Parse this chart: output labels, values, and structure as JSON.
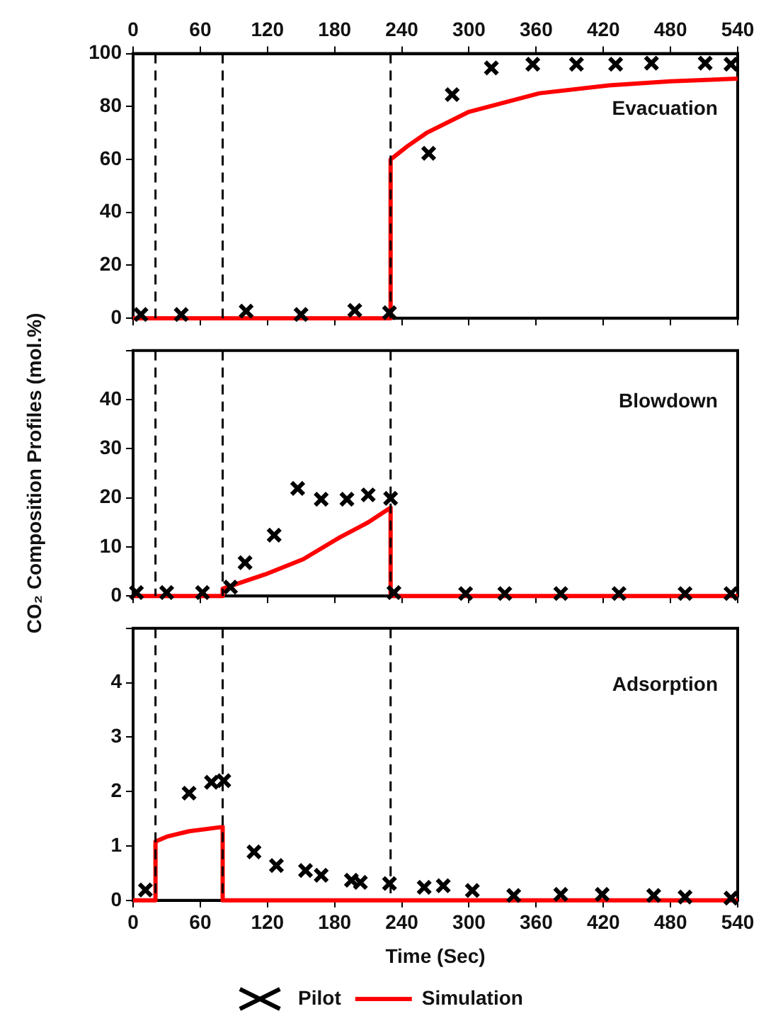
{
  "chart_data": [
    {
      "type": "line",
      "xlim": [
        0,
        540
      ],
      "xticks": [
        0,
        60,
        120,
        180,
        240,
        300,
        360,
        420,
        480,
        540
      ],
      "x2lim": [
        0,
        540
      ],
      "x2ticks": [
        0,
        60,
        120,
        180,
        240,
        300,
        360,
        420,
        480,
        540
      ],
      "tick_labels": "y",
      "ylim": [
        0,
        100
      ],
      "yticks": [
        0,
        20,
        40,
        60,
        80,
        100
      ],
      "grid": false,
      "legend": false,
      "annotations": [
        "Evacuation"
      ],
      "ref_lines": [
        {
          "axis": "x",
          "value": 20,
          "line_style": "dashed",
          "color": "#000000"
        },
        {
          "axis": "x",
          "value": 80,
          "line_style": "dashed",
          "color": "#000000"
        },
        {
          "axis": "x",
          "value": 230,
          "line_style": "dashed",
          "color": "#000000"
        }
      ],
      "series": [
        {
          "color": "#ff0000",
          "marker": "none",
          "x": [
            0,
            230,
            230,
            245,
            262,
            300,
            363,
            425,
            480,
            540
          ],
          "values": [
            0,
            0,
            60,
            65,
            70,
            78,
            85,
            88,
            89.5,
            90.5
          ]
        },
        {
          "type": "scatter",
          "color": "#000000",
          "marker": "cross",
          "x": [
            7,
            43,
            101,
            150,
            198,
            229,
            264,
            285,
            320,
            357,
            396,
            431,
            463,
            511,
            534
          ],
          "values": [
            1.4,
            1.4,
            2.7,
            1.4,
            3,
            2.1,
            62.3,
            84.5,
            94.6,
            96,
            96,
            96,
            96.4,
            96.4,
            96
          ]
        }
      ]
    },
    {
      "type": "line",
      "xlim": [
        0,
        540
      ],
      "xticks": [
        0,
        60,
        120,
        180,
        240,
        300,
        360,
        420,
        480,
        540
      ],
      "ylim": [
        0,
        50
      ],
      "yticks": [
        0,
        10,
        20,
        30,
        40,
        {
          "value": 50,
          "label": null
        }
      ],
      "tick_labels": "y",
      "grid": false,
      "legend": false,
      "ylabel": "CO₂ Composition Profiles (mol.%)",
      "annotations": [
        "Blowdown"
      ],
      "ref_lines": [
        {
          "axis": "x",
          "value": 20,
          "line_style": "dashed",
          "color": "#000000"
        },
        {
          "axis": "x",
          "value": 80,
          "line_style": "dashed",
          "color": "#000000"
        },
        {
          "axis": "x",
          "value": 230,
          "line_style": "dashed",
          "color": "#000000"
        }
      ],
      "series": [
        {
          "color": "#ff0000",
          "marker": "none",
          "x": [
            0,
            80,
            80,
            118,
            152,
            185,
            210,
            230,
            230,
            540
          ],
          "values": [
            0,
            0,
            1.5,
            4.4,
            7.5,
            12,
            15,
            18,
            0,
            0
          ]
        },
        {
          "type": "scatter",
          "color": "#000000",
          "marker": "cross",
          "x": [
            3,
            30,
            62,
            87,
            100,
            126,
            147,
            168,
            191,
            210,
            230,
            233,
            297,
            332,
            382,
            434,
            493,
            534
          ],
          "values": [
            0.7,
            0.7,
            0.7,
            1.8,
            6.8,
            12.4,
            21.9,
            19.7,
            19.7,
            20.6,
            19.9,
            0.7,
            0.5,
            0.5,
            0.5,
            0.5,
            0.5,
            0.5
          ]
        }
      ]
    },
    {
      "type": "line",
      "xlim": [
        0,
        540
      ],
      "xticks": [
        0,
        60,
        120,
        180,
        240,
        300,
        360,
        420,
        480,
        540
      ],
      "ylim": [
        0,
        5
      ],
      "yticks": [
        0,
        1,
        2,
        3,
        4,
        {
          "value": 5,
          "label": null
        }
      ],
      "grid": false,
      "legend": "bottom",
      "xlabel": "Time (Sec)",
      "annotations": [
        "Adsorption"
      ],
      "ref_lines": [
        {
          "axis": "x",
          "value": 20,
          "line_style": "dashed",
          "color": "#000000"
        },
        {
          "axis": "x",
          "value": 80,
          "line_style": "dashed",
          "color": "#000000"
        },
        {
          "axis": "x",
          "value": 230,
          "line_style": "dashed",
          "color": "#000000"
        }
      ],
      "series": [
        {
          "name": "Simulation",
          "color": "#ff0000",
          "marker": "none",
          "x": [
            0,
            20,
            20,
            30,
            50,
            80,
            80,
            540
          ],
          "values": [
            0,
            0,
            1.08,
            1.17,
            1.27,
            1.35,
            0,
            0
          ]
        },
        {
          "type": "scatter",
          "name": "Pilot",
          "color": "#000000",
          "marker": "cross",
          "x": [
            11,
            50,
            70,
            81,
            108,
            128,
            154,
            168,
            195,
            203,
            229,
            260,
            277,
            303,
            340,
            382,
            419,
            465,
            493,
            534
          ],
          "values": [
            0.19,
            1.97,
            2.17,
            2.2,
            0.89,
            0.64,
            0.55,
            0.46,
            0.37,
            0.33,
            0.31,
            0.24,
            0.27,
            0.18,
            0.09,
            0.11,
            0.11,
            0.09,
            0.06,
            0.04
          ]
        }
      ]
    }
  ]
}
